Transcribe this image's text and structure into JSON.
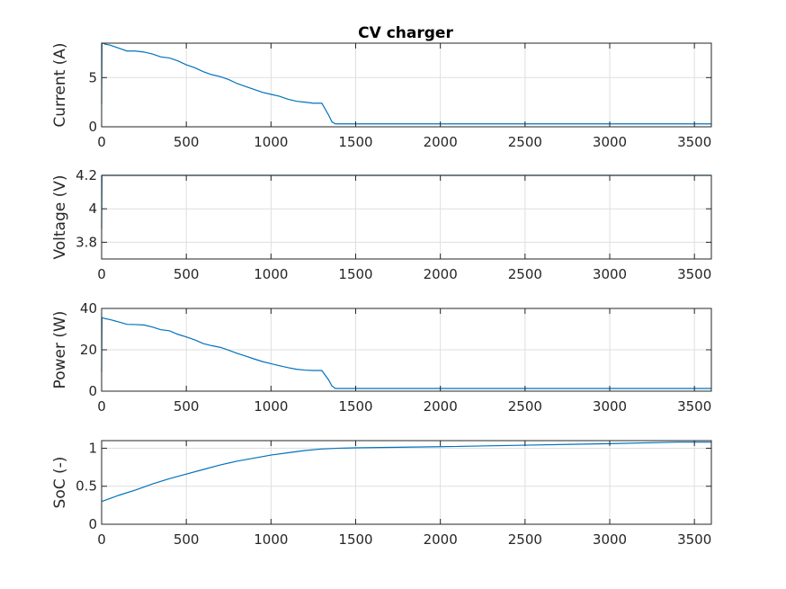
{
  "figure": {
    "title": "CV charger"
  },
  "colors": {
    "series": "#0072bd",
    "grid": "#dfdfdf",
    "axis": "#262626"
  },
  "chart_data": [
    {
      "type": "line",
      "title": "CV charger",
      "xlabel": "",
      "ylabel": "Current (A)",
      "xlim": [
        0,
        3600
      ],
      "ylim": [
        0,
        8.5
      ],
      "xticks": [
        0,
        500,
        1000,
        1500,
        2000,
        2500,
        3000,
        3500
      ],
      "yticks": [
        0,
        5
      ],
      "grid": true,
      "series": [
        {
          "x": [
            0,
            2,
            4,
            8,
            20,
            50,
            100,
            150,
            200,
            250,
            300,
            350,
            400,
            450,
            500,
            550,
            600,
            650,
            700,
            750,
            800,
            850,
            900,
            950,
            1000,
            1050,
            1100,
            1150,
            1200,
            1250,
            1300,
            1340,
            1360,
            1380,
            1500,
            2000,
            2500,
            3000,
            3500,
            3600
          ],
          "y": [
            2.3,
            8.5,
            8.5,
            8.5,
            8.4,
            8.3,
            8.0,
            7.7,
            7.7,
            7.6,
            7.4,
            7.1,
            7.0,
            6.7,
            6.3,
            6.0,
            5.6,
            5.3,
            5.1,
            4.8,
            4.4,
            4.1,
            3.8,
            3.5,
            3.3,
            3.1,
            2.8,
            2.6,
            2.5,
            2.4,
            2.4,
            1.2,
            0.5,
            0.3,
            0.3,
            0.3,
            0.3,
            0.3,
            0.3,
            0.3
          ]
        }
      ]
    },
    {
      "type": "line",
      "xlabel": "",
      "ylabel": "Voltage (V)",
      "xlim": [
        0,
        3600
      ],
      "ylim": [
        3.7,
        4.2
      ],
      "xticks": [
        0,
        500,
        1000,
        1500,
        2000,
        2500,
        3000,
        3500
      ],
      "yticks": [
        3.8,
        4,
        4.2
      ],
      "grid": true,
      "series": [
        {
          "x": [
            0,
            2,
            4,
            3600
          ],
          "y": [
            3.88,
            4.2,
            4.2,
            4.2
          ]
        }
      ]
    },
    {
      "type": "line",
      "xlabel": "",
      "ylabel": "Power (W)",
      "xlim": [
        0,
        3600
      ],
      "ylim": [
        0,
        40
      ],
      "xticks": [
        0,
        500,
        1000,
        1500,
        2000,
        2500,
        3000,
        3500
      ],
      "yticks": [
        0,
        20,
        40
      ],
      "grid": true,
      "series": [
        {
          "x": [
            0,
            2,
            4,
            8,
            20,
            50,
            100,
            150,
            200,
            250,
            300,
            350,
            400,
            450,
            500,
            550,
            600,
            650,
            700,
            750,
            800,
            850,
            900,
            950,
            1000,
            1050,
            1100,
            1150,
            1200,
            1250,
            1300,
            1340,
            1360,
            1380,
            1500,
            2000,
            2500,
            3000,
            3500,
            3600
          ],
          "y": [
            9,
            35.5,
            35.5,
            35.4,
            35.1,
            34.6,
            33.5,
            32.3,
            32.2,
            32.0,
            31.0,
            29.7,
            29.2,
            27.5,
            26.2,
            24.8,
            23.0,
            22.0,
            21.2,
            19.8,
            18.3,
            17.0,
            15.6,
            14.3,
            13.3,
            12.3,
            11.4,
            10.6,
            10.2,
            10.0,
            10.0,
            5.5,
            2.5,
            1.3,
            1.3,
            1.3,
            1.3,
            1.3,
            1.3,
            1.3
          ]
        }
      ]
    },
    {
      "type": "line",
      "xlabel": "",
      "ylabel": "SoC (-)",
      "xlim": [
        0,
        3600
      ],
      "ylim": [
        0,
        1.1
      ],
      "xticks": [
        0,
        500,
        1000,
        1500,
        2000,
        2500,
        3000,
        3500
      ],
      "yticks": [
        0,
        0.5,
        1
      ],
      "grid": true,
      "series": [
        {
          "x": [
            0,
            100,
            200,
            300,
            400,
            500,
            600,
            700,
            800,
            900,
            1000,
            1100,
            1200,
            1300,
            1400,
            1500,
            2000,
            2500,
            3000,
            3400,
            3600
          ],
          "y": [
            0.3,
            0.38,
            0.45,
            0.53,
            0.6,
            0.66,
            0.72,
            0.78,
            0.83,
            0.87,
            0.91,
            0.94,
            0.97,
            0.99,
            1.0,
            1.005,
            1.02,
            1.04,
            1.06,
            1.08,
            1.08
          ]
        }
      ]
    }
  ]
}
